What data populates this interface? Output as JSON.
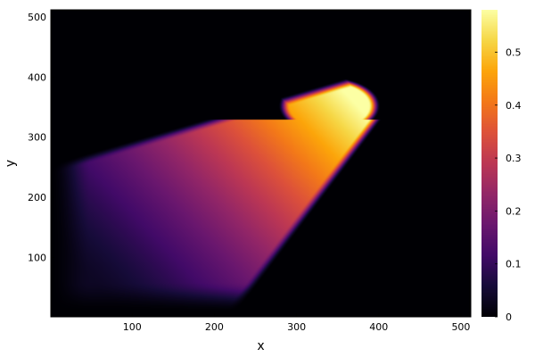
{
  "chart_data": {
    "type": "heatmap",
    "title": "",
    "xlabel": "x",
    "ylabel": "y",
    "xlim": [
      1,
      512
    ],
    "ylim": [
      1,
      512
    ],
    "xticks": [
      100,
      200,
      300,
      400,
      500
    ],
    "yticks": [
      100,
      200,
      300,
      400,
      500
    ],
    "x_tick_labels": [
      "100",
      "200",
      "300",
      "400",
      "500"
    ],
    "y_tick_labels": [
      "100",
      "200",
      "300",
      "400",
      "500"
    ],
    "colorbar": {
      "colormap": "inferno",
      "range": [
        0,
        0.58
      ],
      "ticks": [
        0,
        0.1,
        0.2,
        0.3,
        0.4,
        0.5
      ],
      "tick_labels": [
        "0",
        "0.1",
        "0.2",
        "0.3",
        "0.4",
        "0.5"
      ]
    },
    "grid": false,
    "background_value": 0,
    "plume": {
      "description_values": "value field: zero outside a comet-shaped plume; plume brightest (~0.58) near x≈365,y≈365 and fading toward the lower-left (x≈10,y≈120)",
      "peak_value": 0.58,
      "peak_location": [
        365,
        365
      ],
      "tip_location": [
        395,
        370
      ],
      "tail_location": [
        10,
        120
      ]
    }
  }
}
